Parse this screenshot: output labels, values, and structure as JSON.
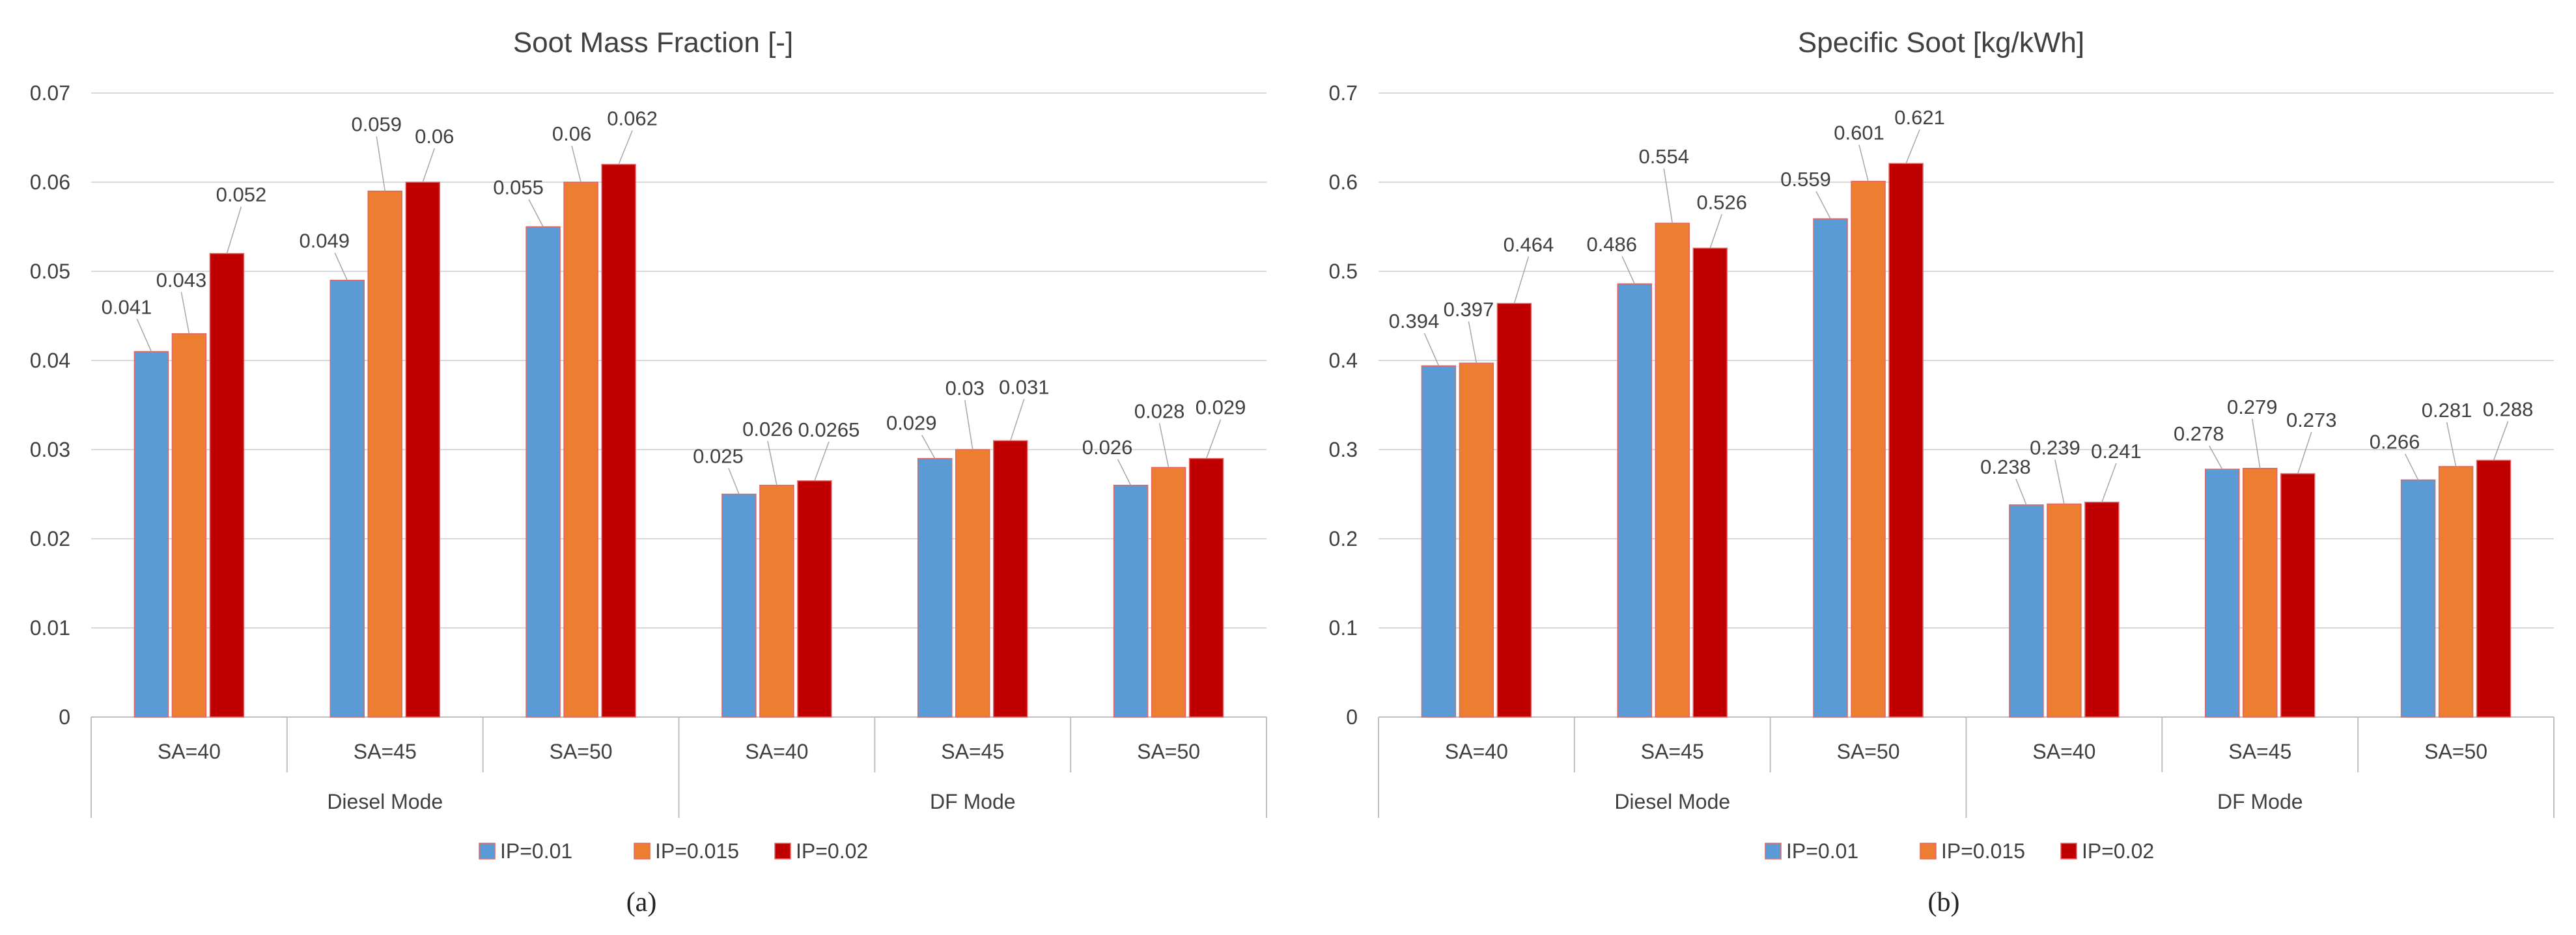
{
  "chart_data": [
    {
      "type": "bar",
      "title": "Soot Mass Fraction [-]",
      "caption": "(a)",
      "ylim": [
        0,
        0.07
      ],
      "yticks": [
        "0",
        "0.01",
        "0.02",
        "0.03",
        "0.04",
        "0.05",
        "0.06",
        "0.07"
      ],
      "ytick_values": [
        0,
        0.01,
        0.02,
        0.03,
        0.04,
        0.05,
        0.06,
        0.07
      ],
      "groups": [
        "Diesel Mode",
        "DF Mode"
      ],
      "categories": [
        "SA=40",
        "SA=45",
        "SA=50",
        "SA=40",
        "SA=45",
        "SA=50"
      ],
      "series": [
        {
          "name": "IP=0.01",
          "color": "#5b9bd5",
          "values": [
            0.041,
            0.049,
            0.055,
            0.025,
            0.029,
            0.026
          ],
          "labels": [
            "0.041",
            "0.049",
            "0.055",
            "0.025",
            "0.029",
            "0.026"
          ]
        },
        {
          "name": "IP=0.015",
          "color": "#ed7d31",
          "values": [
            0.043,
            0.059,
            0.06,
            0.026,
            0.03,
            0.028
          ],
          "labels": [
            "0.043",
            "0.059",
            "0.06",
            "0.026",
            "0.03",
            "0.028"
          ]
        },
        {
          "name": "IP=0.02",
          "color": "#c00000",
          "values": [
            0.052,
            0.06,
            0.062,
            0.0265,
            0.031,
            0.029
          ],
          "labels": [
            "0.052",
            "0.06",
            "0.062",
            "0.0265",
            "0.031",
            "0.029"
          ]
        }
      ],
      "legend": "bottom"
    },
    {
      "type": "bar",
      "title": "Specific Soot [kg/kWh]",
      "caption": "(b)",
      "ylim": [
        0,
        0.7
      ],
      "yticks": [
        "0",
        "0.1",
        "0.2",
        "0.3",
        "0.4",
        "0.5",
        "0.6",
        "0.7"
      ],
      "ytick_values": [
        0,
        0.1,
        0.2,
        0.3,
        0.4,
        0.5,
        0.6,
        0.7
      ],
      "groups": [
        "Diesel Mode",
        "DF Mode"
      ],
      "categories": [
        "SA=40",
        "SA=45",
        "SA=50",
        "SA=40",
        "SA=45",
        "SA=50"
      ],
      "series": [
        {
          "name": "IP=0.01",
          "color": "#5b9bd5",
          "values": [
            0.394,
            0.486,
            0.559,
            0.238,
            0.278,
            0.266
          ],
          "labels": [
            "0.394",
            "0.486",
            "0.559",
            "0.238",
            "0.278",
            "0.266"
          ]
        },
        {
          "name": "IP=0.015",
          "color": "#ed7d31",
          "values": [
            0.397,
            0.554,
            0.601,
            0.239,
            0.279,
            0.281
          ],
          "labels": [
            "0.397",
            "0.554",
            "0.601",
            "0.239",
            "0.279",
            "0.281"
          ]
        },
        {
          "name": "IP=0.02",
          "color": "#c00000",
          "values": [
            0.464,
            0.526,
            0.621,
            0.241,
            0.273,
            0.288
          ],
          "labels": [
            "0.464",
            "0.526",
            "0.621",
            "0.241",
            "0.273",
            "0.288"
          ]
        }
      ],
      "legend": "bottom"
    }
  ]
}
